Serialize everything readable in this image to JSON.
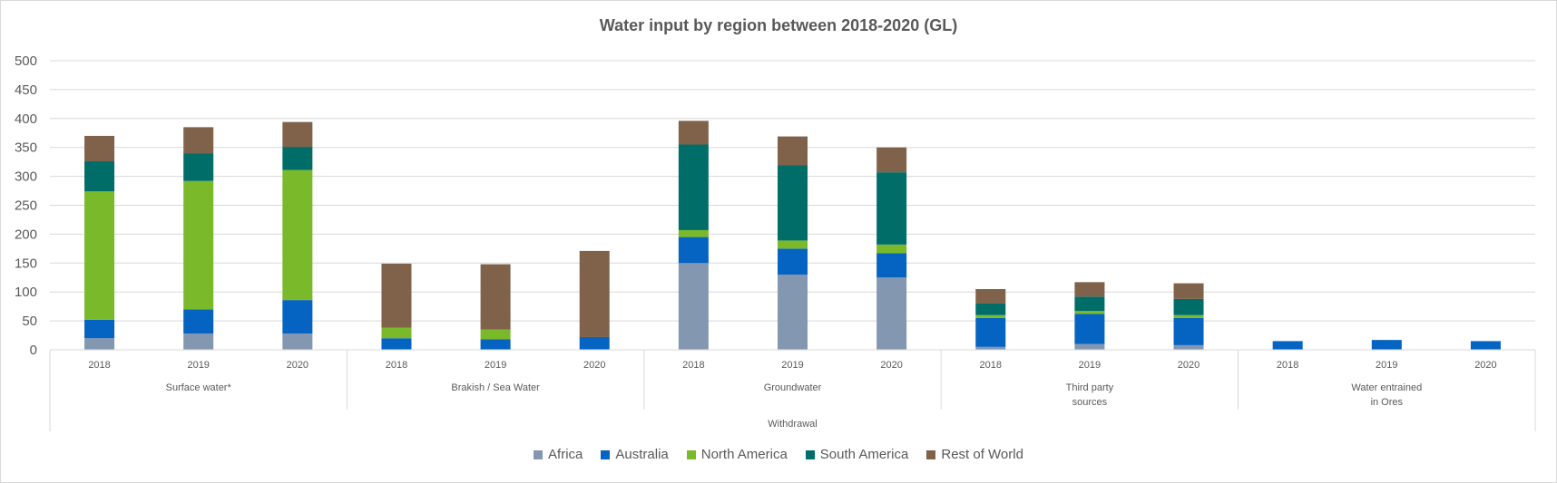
{
  "chart_data": {
    "type": "bar",
    "stacked": true,
    "title": "Water input by region between 2018-2020 (GL)",
    "ylim": [
      0,
      500
    ],
    "yticks": [
      "0",
      "50",
      "100",
      "150",
      "200",
      "250",
      "300",
      "350",
      "400",
      "450",
      "500"
    ],
    "grid": true,
    "legend_position": "bottom",
    "categories": [
      "2018",
      "2019",
      "2020",
      "2018",
      "2019",
      "2020",
      "2018",
      "2019",
      "2020",
      "2018",
      "2019",
      "2020",
      "2018",
      "2019",
      "2020"
    ],
    "groups": [
      {
        "label_lines": [
          "Surface water*"
        ]
      },
      {
        "label_lines": [
          "Brakish / Sea Water"
        ]
      },
      {
        "label_lines": [
          "Groundwater"
        ]
      },
      {
        "label_lines": [
          "Third party",
          "sources"
        ]
      },
      {
        "label_lines": [
          "Water entrained",
          "in Ores"
        ]
      }
    ],
    "super_group": "Withdrawal",
    "series": [
      {
        "name": "Africa",
        "color": "#8497b0",
        "values": [
          20,
          28,
          28,
          0,
          0,
          0,
          150,
          130,
          125,
          5,
          10,
          8,
          0,
          0,
          0
        ]
      },
      {
        "name": "Australia",
        "color": "#0563c1",
        "values": [
          32,
          42,
          58,
          20,
          18,
          22,
          45,
          45,
          42,
          50,
          52,
          47,
          15,
          17,
          15
        ]
      },
      {
        "name": "North America",
        "color": "#7ab929",
        "values": [
          222,
          222,
          225,
          18,
          17,
          0,
          12,
          14,
          15,
          5,
          5,
          5,
          0,
          0,
          0
        ]
      },
      {
        "name": "South America",
        "color": "#006d69",
        "values": [
          52,
          48,
          40,
          0,
          0,
          0,
          148,
          130,
          125,
          20,
          25,
          28,
          0,
          0,
          0
        ]
      },
      {
        "name": "Rest of World",
        "color": "#7f6249",
        "values": [
          44,
          45,
          43,
          111,
          113,
          149,
          41,
          50,
          43,
          25,
          25,
          27,
          0,
          0,
          0
        ]
      }
    ]
  }
}
